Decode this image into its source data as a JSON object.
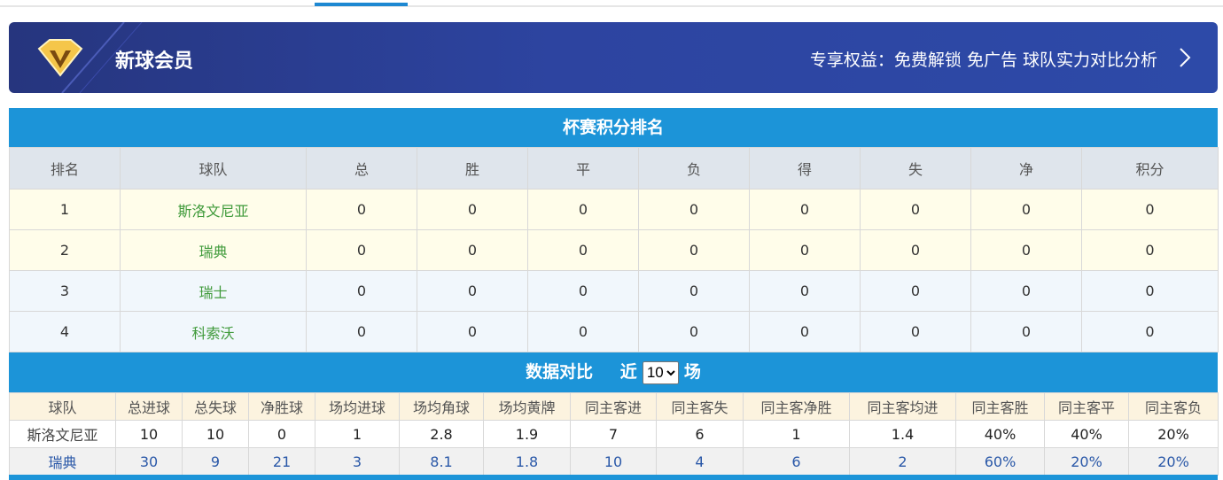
{
  "banner": {
    "title": "新球会员",
    "benefits": "专享权益：免费解锁 免广告 球队实力对比分析"
  },
  "standings": {
    "title": "杯赛积分排名",
    "headers": [
      "排名",
      "球队",
      "总",
      "胜",
      "平",
      "负",
      "得",
      "失",
      "净",
      "积分"
    ],
    "rows": [
      [
        1,
        "斯洛文尼亚",
        0,
        0,
        0,
        0,
        0,
        0,
        0,
        0
      ],
      [
        2,
        "瑞典",
        0,
        0,
        0,
        0,
        0,
        0,
        0,
        0
      ],
      [
        3,
        "瑞士",
        0,
        0,
        0,
        0,
        0,
        0,
        0,
        0
      ],
      [
        4,
        "科索沃",
        0,
        0,
        0,
        0,
        0,
        0,
        0,
        0
      ]
    ]
  },
  "comparison": {
    "title": "数据对比",
    "recent_label": "近",
    "recent_value": "10",
    "recent_unit": "场",
    "headers": [
      "球队",
      "总进球",
      "总失球",
      "净胜球",
      "场均进球",
      "场均角球",
      "场均黄牌",
      "同主客进",
      "同主客失",
      "同主客净胜",
      "同主客均进",
      "同主客胜",
      "同主客平",
      "同主客负"
    ],
    "rows": [
      [
        "斯洛文尼亚",
        10,
        10,
        0,
        1,
        2.8,
        1.9,
        7,
        6,
        1,
        1.4,
        "40%",
        "40%",
        "20%"
      ],
      [
        "瑞典",
        30,
        9,
        21,
        3,
        8.1,
        1.8,
        10,
        4,
        6,
        2,
        "60%",
        "20%",
        "20%"
      ]
    ]
  }
}
